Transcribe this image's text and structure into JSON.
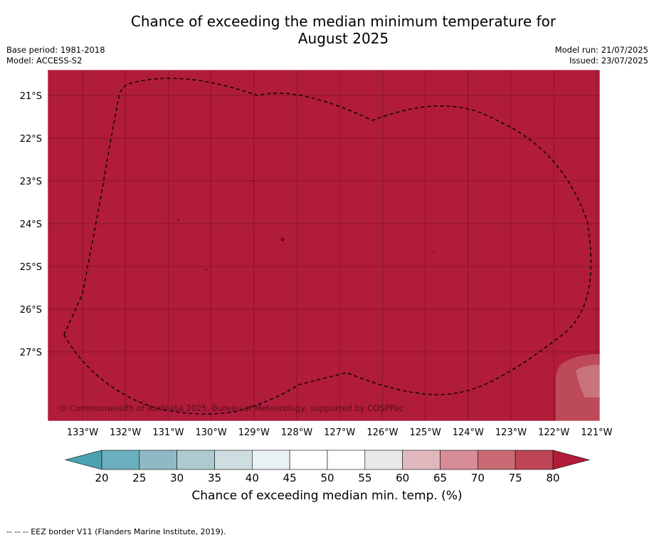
{
  "header": {
    "title_line1": "Chance of exceeding the median minimum temperature for",
    "title_line2": "August 2025",
    "base_period": "Base period: 1981-2018",
    "model": "Model: ACCESS-S2",
    "model_run": "Model run: 21/07/2025",
    "issued": "Issued: 23/07/2025"
  },
  "map": {
    "background_color": "#b01c3a",
    "lat_labels": [
      "21°S",
      "22°S",
      "23°S",
      "24°S",
      "25°S",
      "26°S",
      "27°S"
    ],
    "lon_labels": [
      "133°W",
      "132°W",
      "131°W",
      "130°W",
      "129°W",
      "128°W",
      "127°W",
      "126°W",
      "125°W",
      "124°W",
      "123°W",
      "122°W",
      "121°W"
    ],
    "copyright": "© Commonwealth of Australia 2025, Bureau of Meteorology, supported by COSPPac",
    "border_style": "dashed"
  },
  "colorbar": {
    "ticks": [
      "20",
      "25",
      "30",
      "35",
      "40",
      "45",
      "50",
      "55",
      "60",
      "65",
      "70",
      "75",
      "80"
    ],
    "colors": [
      "#6aafbe",
      "#8fbac5",
      "#adcad0",
      "#cddde0",
      "#eaf1f2",
      "#ffffff",
      "#ffffff",
      "#e9e9e9",
      "#e0b8be",
      "#d68d96",
      "#c96a74",
      "#bd4556"
    ],
    "under_color": "#4ba3b2",
    "over_color": "#b01c3a",
    "label": "Chance of exceeding median min. temp. (%)"
  },
  "footer": {
    "legend_text": "--  --  -- EEZ border V11 (Flanders Marine Institute, 2019)."
  }
}
